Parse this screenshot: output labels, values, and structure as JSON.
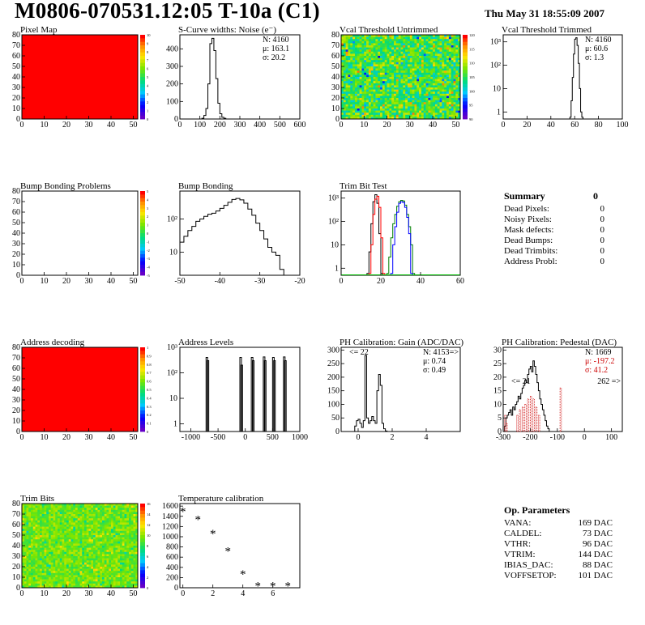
{
  "header": {
    "title": "M0806-070531.12:05 T-10a (C1)",
    "date": "Thu May 31 18:55:09 2007"
  },
  "colors": {
    "map_red": "#ff0000",
    "line": "#000000",
    "trim_red": "#d00000",
    "trim_green": "#00c000",
    "pedestal_red": "#cc0000"
  },
  "chart_data": [
    {
      "id": "pixel-map",
      "type": "heatmap",
      "title": "Pixel Map",
      "xlim": [
        0,
        52
      ],
      "ylim": [
        0,
        80
      ],
      "xticks": [
        "0",
        "10",
        "20",
        "30",
        "40",
        "50"
      ],
      "yticks": [
        "0",
        "10",
        "20",
        "30",
        "40",
        "50",
        "60",
        "70",
        "80"
      ],
      "fill": "uniform-max",
      "palette_labels": [
        "0",
        "1",
        "2",
        "3",
        "4",
        "5",
        "6",
        "7",
        "8",
        "9",
        "10"
      ]
    },
    {
      "id": "scurve-widths",
      "type": "histogram",
      "title": "S-Curve widths: Noise (e⁻)",
      "xlim": [
        0,
        600
      ],
      "ylim": [
        0,
        480
      ],
      "xticks": [
        "0",
        "100",
        "200",
        "300",
        "400",
        "500",
        "600"
      ],
      "yticks": [
        "0",
        "100",
        "200",
        "300",
        "400"
      ],
      "stats": [
        "N: 4160",
        "μ: 163.1",
        "σ: 20.2"
      ],
      "bins": [
        [
          100,
          0
        ],
        [
          110,
          4
        ],
        [
          120,
          20
        ],
        [
          130,
          60
        ],
        [
          140,
          200
        ],
        [
          150,
          430
        ],
        [
          160,
          460
        ],
        [
          170,
          390
        ],
        [
          180,
          230
        ],
        [
          190,
          90
        ],
        [
          200,
          30
        ],
        [
          210,
          10
        ],
        [
          220,
          4
        ],
        [
          230,
          0
        ]
      ]
    },
    {
      "id": "vcal-untrimmed",
      "type": "heatmap",
      "title": "Vcal Threshold Untrimmed",
      "xlim": [
        0,
        52
      ],
      "ylim": [
        0,
        80
      ],
      "xticks": [
        "0",
        "10",
        "20",
        "30",
        "40",
        "50"
      ],
      "yticks": [
        "0",
        "10",
        "20",
        "30",
        "40",
        "50",
        "60",
        "70",
        "80"
      ],
      "fill": "random",
      "palette_labels": [
        "90",
        "95",
        "100",
        "105",
        "110",
        "115",
        "120"
      ]
    },
    {
      "id": "vcal-trimmed",
      "type": "histogram",
      "title": "Vcal Threshold Trimmed",
      "log_y": true,
      "xlim": [
        0,
        100
      ],
      "ylim": [
        0.5,
        2000
      ],
      "xticks": [
        "0",
        "20",
        "40",
        "60",
        "80",
        "100"
      ],
      "yticks": [
        "1",
        "10",
        "10²",
        "10³"
      ],
      "stats": [
        "N: 4160",
        "μ: 60.6",
        "σ: 1.3"
      ],
      "bins": [
        [
          56,
          0.6
        ],
        [
          57,
          3
        ],
        [
          58,
          30
        ],
        [
          59,
          300
        ],
        [
          60,
          1300
        ],
        [
          61,
          1500
        ],
        [
          62,
          700
        ],
        [
          63,
          120
        ],
        [
          64,
          10
        ],
        [
          65,
          1
        ],
        [
          66,
          0.6
        ]
      ]
    },
    {
      "id": "bump-bonding-problems",
      "type": "heatmap",
      "title": "Bump Bonding Problems",
      "xlim": [
        0,
        52
      ],
      "ylim": [
        0,
        80
      ],
      "xticks": [
        "0",
        "10",
        "20",
        "30",
        "40",
        "50"
      ],
      "yticks": [
        "0",
        "10",
        "20",
        "30",
        "40",
        "50",
        "60",
        "70",
        "80"
      ],
      "fill": "empty",
      "palette_labels": [
        "-5",
        "-4",
        "-3",
        "-2",
        "-1",
        "0",
        "1",
        "2",
        "3",
        "4",
        "5"
      ]
    },
    {
      "id": "bump-bonding",
      "type": "histogram",
      "title": "Bump Bonding",
      "log_y": true,
      "xlim": [
        -50,
        -20
      ],
      "ylim": [
        2,
        700
      ],
      "xticks": [
        "-50",
        "-40",
        "-30",
        "-20"
      ],
      "yticks": [
        "10",
        "10²"
      ],
      "bins": [
        [
          -50,
          20
        ],
        [
          -49,
          30
        ],
        [
          -48,
          45
        ],
        [
          -47,
          60
        ],
        [
          -46,
          85
        ],
        [
          -45,
          100
        ],
        [
          -44,
          120
        ],
        [
          -43,
          140
        ],
        [
          -42,
          150
        ],
        [
          -41,
          175
        ],
        [
          -40,
          210
        ],
        [
          -39,
          260
        ],
        [
          -38,
          320
        ],
        [
          -37,
          390
        ],
        [
          -36,
          420
        ],
        [
          -35,
          380
        ],
        [
          -34,
          300
        ],
        [
          -33,
          200
        ],
        [
          -32,
          130
        ],
        [
          -31,
          75
        ],
        [
          -30,
          45
        ],
        [
          -29,
          25
        ],
        [
          -28,
          14
        ],
        [
          -27,
          10
        ],
        [
          -26,
          8
        ],
        [
          -25,
          3
        ],
        [
          -24,
          2
        ]
      ]
    },
    {
      "id": "trim-bit-test",
      "type": "histogram",
      "title": "Trim Bit Test",
      "log_y": true,
      "xlim": [
        0,
        60
      ],
      "ylim": [
        0.5,
        2000
      ],
      "xticks": [
        "0",
        "20",
        "40",
        "60"
      ],
      "yticks": [
        "1",
        "10",
        "10²",
        "10³"
      ],
      "series": [
        {
          "name": "trim1",
          "color": "black",
          "bins": [
            [
              13,
              0.6
            ],
            [
              14,
              5
            ],
            [
              15,
              80
            ],
            [
              16,
              700
            ],
            [
              17,
              1400
            ],
            [
              18,
              600
            ],
            [
              19,
              30
            ],
            [
              20,
              0.6
            ]
          ]
        },
        {
          "name": "trim2",
          "color": "red",
          "bins": [
            [
              14,
              0.6
            ],
            [
              15,
              10
            ],
            [
              16,
              200
            ],
            [
              17,
              900
            ],
            [
              18,
              1200
            ],
            [
              19,
              400
            ],
            [
              20,
              20
            ],
            [
              21,
              0.6
            ]
          ]
        },
        {
          "name": "trim3",
          "color": "green",
          "bins": [
            [
              23,
              0.6
            ],
            [
              24,
              3
            ],
            [
              25,
              20
            ],
            [
              26,
              80
            ],
            [
              27,
              200
            ],
            [
              28,
              450
            ],
            [
              29,
              700
            ],
            [
              30,
              800
            ],
            [
              31,
              750
            ],
            [
              32,
              500
            ],
            [
              33,
              200
            ],
            [
              34,
              60
            ],
            [
              35,
              10
            ],
            [
              36,
              0.6
            ]
          ]
        },
        {
          "name": "trim4",
          "color": "blue",
          "bins": [
            [
              25,
              0.6
            ],
            [
              26,
              10
            ],
            [
              27,
              60
            ],
            [
              28,
              250
            ],
            [
              29,
              600
            ],
            [
              30,
              700
            ],
            [
              31,
              650
            ],
            [
              32,
              400
            ],
            [
              33,
              150
            ],
            [
              34,
              30
            ],
            [
              35,
              0.6
            ]
          ]
        }
      ]
    },
    {
      "id": "address-decoding",
      "type": "heatmap",
      "title": "Address decoding",
      "xlim": [
        0,
        52
      ],
      "ylim": [
        0,
        80
      ],
      "xticks": [
        "0",
        "10",
        "20",
        "30",
        "40",
        "50"
      ],
      "yticks": [
        "0",
        "10",
        "20",
        "30",
        "40",
        "50",
        "60",
        "70",
        "80"
      ],
      "fill": "uniform-max",
      "palette_labels": [
        "0",
        "0.1",
        "0.2",
        "0.3",
        "0.4",
        "0.5",
        "0.6",
        "0.7",
        "0.8",
        "0.9",
        "1"
      ]
    },
    {
      "id": "address-levels",
      "type": "histogram",
      "title": "Address Levels",
      "log_y": true,
      "xlim": [
        -1200,
        1000
      ],
      "ylim": [
        0.5,
        1000
      ],
      "xticks": [
        "-1000",
        "-500",
        "0",
        "500",
        "1000"
      ],
      "yticks": [
        "1",
        "10",
        "10²",
        "10³"
      ],
      "spikes": [
        [
          -720,
          400
        ],
        [
          -700,
          300
        ],
        [
          -100,
          400
        ],
        [
          -80,
          200
        ],
        [
          110,
          400
        ],
        [
          130,
          300
        ],
        [
          330,
          420
        ],
        [
          350,
          300
        ],
        [
          500,
          400
        ],
        [
          520,
          300
        ],
        [
          700,
          420
        ],
        [
          720,
          300
        ]
      ]
    },
    {
      "id": "ph-gain",
      "type": "histogram",
      "title": "PH Calibration: Gain (ADC/DAC)",
      "xlim": [
        -1,
        6
      ],
      "ylim": [
        0,
        310
      ],
      "xticks": [
        "0",
        "2",
        "4"
      ],
      "yticks": [
        "0",
        "50",
        "100",
        "150",
        "200",
        "250",
        "300"
      ],
      "stats": [
        "N: 4153",
        "μ: 0.74",
        "σ: 0.49"
      ],
      "overflow_left": "<= 22",
      "overflow_right": "=>",
      "bins": [
        [
          -0.2,
          20
        ],
        [
          -0.1,
          40
        ],
        [
          0.0,
          45
        ],
        [
          0.1,
          30
        ],
        [
          0.2,
          15
        ],
        [
          0.3,
          40
        ],
        [
          0.4,
          280
        ],
        [
          0.5,
          50
        ],
        [
          0.6,
          30
        ],
        [
          0.7,
          40
        ],
        [
          0.8,
          55
        ],
        [
          0.9,
          40
        ],
        [
          1.0,
          30
        ],
        [
          1.1,
          150
        ],
        [
          1.2,
          210
        ],
        [
          1.3,
          170
        ],
        [
          1.4,
          30
        ],
        [
          1.5,
          10
        ],
        [
          1.6,
          2
        ]
      ]
    },
    {
      "id": "ph-pedestal",
      "type": "histogram",
      "title": "PH Calibration: Pedestal (DAC)",
      "xlim": [
        -300,
        140
      ],
      "ylim": [
        0,
        31
      ],
      "xticks": [
        "-300",
        "-200",
        "-100",
        "0",
        "100"
      ],
      "yticks": [
        "0",
        "5",
        "10",
        "15",
        "20",
        "25",
        "30"
      ],
      "stats": [
        "N: 1669",
        "μ: -197.2",
        "σ: 41.2"
      ],
      "overflow_left": "<= 21",
      "overflow_right": "262 =>",
      "bins": [
        [
          -295,
          2
        ],
        [
          -290,
          5
        ],
        [
          -285,
          6
        ],
        [
          -280,
          7
        ],
        [
          -275,
          8
        ],
        [
          -270,
          6
        ],
        [
          -265,
          9
        ],
        [
          -260,
          8
        ],
        [
          -255,
          10
        ],
        [
          -250,
          11
        ],
        [
          -245,
          13
        ],
        [
          -240,
          12
        ],
        [
          -235,
          14
        ],
        [
          -230,
          16
        ],
        [
          -225,
          17
        ],
        [
          -220,
          19
        ],
        [
          -215,
          18
        ],
        [
          -210,
          21
        ],
        [
          -205,
          23
        ],
        [
          -200,
          24
        ],
        [
          -195,
          22
        ],
        [
          -190,
          26
        ],
        [
          -185,
          24
        ],
        [
          -180,
          21
        ],
        [
          -175,
          18
        ],
        [
          -170,
          15
        ],
        [
          -165,
          12
        ],
        [
          -160,
          10
        ],
        [
          -155,
          8
        ],
        [
          -150,
          6
        ],
        [
          -145,
          4
        ],
        [
          -140,
          2
        ],
        [
          -135,
          1
        ]
      ],
      "red_bins": [
        [
          -295,
          6
        ],
        [
          -290,
          3
        ],
        [
          -250,
          6
        ],
        [
          -240,
          8
        ],
        [
          -230,
          9
        ],
        [
          -220,
          10
        ],
        [
          -210,
          12
        ],
        [
          -200,
          13
        ],
        [
          -190,
          12
        ],
        [
          -180,
          9
        ],
        [
          -170,
          6
        ],
        [
          -90,
          16
        ]
      ]
    },
    {
      "id": "trim-bits",
      "type": "heatmap",
      "title": "Trim Bits",
      "xlim": [
        0,
        52
      ],
      "ylim": [
        0,
        80
      ],
      "xticks": [
        "0",
        "10",
        "20",
        "30",
        "40",
        "50"
      ],
      "yticks": [
        "0",
        "10",
        "20",
        "30",
        "40",
        "50",
        "60",
        "70",
        "80"
      ],
      "fill": "random-green",
      "palette_labels": [
        "0",
        "2",
        "4",
        "6",
        "8",
        "10",
        "12",
        "14",
        "16"
      ]
    },
    {
      "id": "temperature-calibration",
      "type": "scatter",
      "title": "Temperature calibration",
      "xlim": [
        -0.2,
        7.8
      ],
      "ylim": [
        0,
        1650
      ],
      "xticks": [
        "0",
        "2",
        "4",
        "6"
      ],
      "yticks": [
        "0",
        "200",
        "400",
        "600",
        "800",
        "1000",
        "1200",
        "1400",
        "1600"
      ],
      "x": [
        0,
        1,
        2,
        3,
        4,
        5,
        6,
        7
      ],
      "y": [
        1500,
        1340,
        1060,
        720,
        270,
        40,
        40,
        40
      ]
    }
  ],
  "summary": {
    "title": "Summary",
    "value": "0",
    "rows": [
      {
        "label": "Dead Pixels:",
        "value": "0"
      },
      {
        "label": "Noisy Pixels:",
        "value": "0"
      },
      {
        "label": "Mask defects:",
        "value": "0"
      },
      {
        "label": "Dead Bumps:",
        "value": "0"
      },
      {
        "label": "Dead Trimbits:",
        "value": "0"
      },
      {
        "label": "Address Probl:",
        "value": "0"
      }
    ]
  },
  "op_params": {
    "title": "Op. Parameters",
    "rows": [
      {
        "label": "VANA:",
        "value": "169 DAC"
      },
      {
        "label": "CALDEL:",
        "value": "73 DAC"
      },
      {
        "label": "VTHR:",
        "value": "96 DAC"
      },
      {
        "label": "VTRIM:",
        "value": "144 DAC"
      },
      {
        "label": "IBIAS_DAC:",
        "value": "88 DAC"
      },
      {
        "label": "VOFFSETOP:",
        "value": "101 DAC"
      }
    ]
  }
}
